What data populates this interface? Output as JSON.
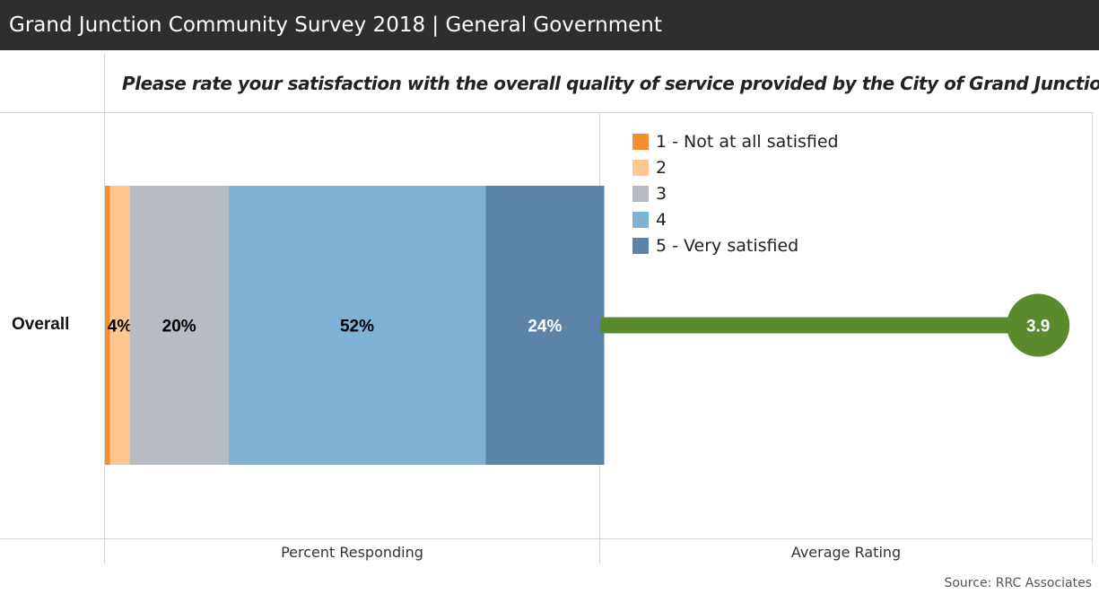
{
  "header": {
    "title": "Grand Junction Community Survey 2018 | General Government"
  },
  "question": "Please rate your satisfaction with the overall quality of service provided by the City of Grand Junction:",
  "row_label": "Overall",
  "axis_labels": {
    "percent": "Percent Responding",
    "average": "Average Rating"
  },
  "source": "Source: RRC Associates",
  "legend": [
    {
      "label": "1 - Not at all satisfied",
      "color": "#f28e2b"
    },
    {
      "label": "2",
      "color": "#ffc690"
    },
    {
      "label": "3",
      "color": "#b7bcc4"
    },
    {
      "label": "4",
      "color": "#7fb3d6"
    },
    {
      "label": "5 - Very satisfied",
      "color": "#5b84a8"
    }
  ],
  "chart_data": [
    {
      "type": "bar",
      "orientation": "horizontal-stacked",
      "categories": [
        "Overall"
      ],
      "xlabel": "Percent Responding",
      "xlim": [
        0,
        100
      ],
      "series": [
        {
          "name": "1 - Not at all satisfied",
          "values": [
            1
          ],
          "data_label": "",
          "color": "#f28e2b",
          "label_color": "#000000"
        },
        {
          "name": "2",
          "values": [
            4
          ],
          "data_label": "4%",
          "color": "#ffc690",
          "label_color": "#000000"
        },
        {
          "name": "3",
          "values": [
            20
          ],
          "data_label": "20%",
          "color": "#b7bcc4",
          "label_color": "#000000"
        },
        {
          "name": "4",
          "values": [
            52
          ],
          "data_label": "52%",
          "color": "#7fb3d6",
          "label_color": "#000000"
        },
        {
          "name": "5 - Very satisfied",
          "values": [
            24
          ],
          "data_label": "24%",
          "color": "#5b84a8",
          "label_color": "#ffffff"
        }
      ],
      "legend": "top-right",
      "grid": false
    },
    {
      "type": "lollipop",
      "categories": [
        "Overall"
      ],
      "xlabel": "Average Rating",
      "xlim": [
        1,
        4
      ],
      "values": [
        3.9
      ],
      "data_label": "3.9",
      "color": "#5b8a2e",
      "label_color": "#ffffff"
    }
  ]
}
